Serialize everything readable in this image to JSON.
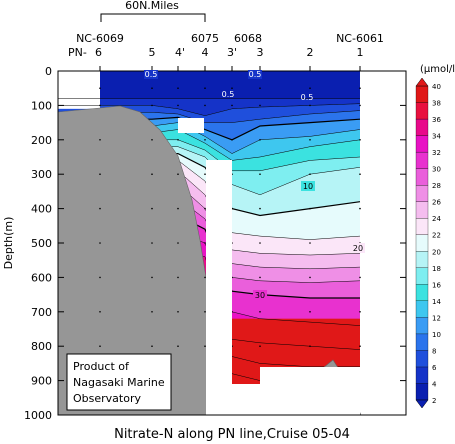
{
  "chart_data": {
    "type": "heatmap",
    "title": "Nitrate-N along PN line,Cruise 05-04",
    "ylabel": "Depth(m)",
    "ylim": [
      1000,
      0
    ],
    "yticks": [
      0,
      100,
      200,
      300,
      400,
      500,
      600,
      700,
      800,
      900,
      1000
    ],
    "scale_bar_label": "60N.Miles",
    "station_names": [
      "NC-6069",
      "6075",
      "6068",
      "NC-6061"
    ],
    "pn_prefix": "PN-",
    "stations": [
      "6",
      "5",
      "4'",
      "4",
      "3'",
      "3",
      "2",
      "1"
    ],
    "colorbar_unit": "(μmol/l)",
    "colorbar_levels": [
      2,
      4,
      6,
      8,
      10,
      12,
      14,
      16,
      18,
      20,
      22,
      24,
      26,
      28,
      30,
      32,
      34,
      36,
      38,
      40
    ],
    "contour_labels": [
      "0.5",
      "0.5",
      "0.5",
      "0.5",
      "10",
      "20",
      "30"
    ],
    "note": [
      "Product of",
      "Nagasaki Marine",
      "Observatory"
    ]
  },
  "colors": {
    "scale": [
      "#0a1fb0",
      "#1533c8",
      "#1f4fdc",
      "#2b74ec",
      "#3a9cf4",
      "#3ec7ef",
      "#3be2e0",
      "#7eeef0",
      "#b6f4f6",
      "#e6fbfc",
      "#fbe6f8",
      "#f5bdef",
      "#ef8fe6",
      "#ea5fdb",
      "#e831cf",
      "#e812c4",
      "#e80a8a",
      "#e8103f",
      "#e01818"
    ],
    "land": "#969696"
  }
}
